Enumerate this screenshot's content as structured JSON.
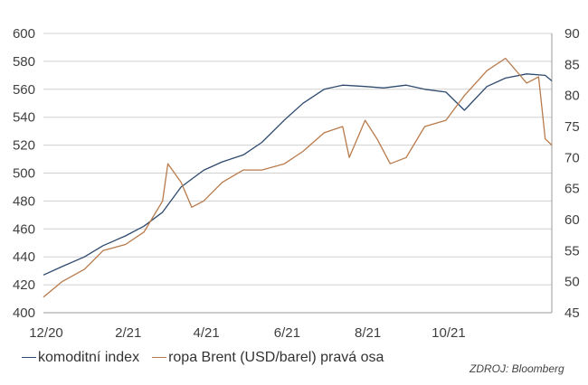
{
  "chart_data": {
    "type": "line",
    "title": "",
    "x_tick_labels": [
      "12/20",
      "2/21",
      "4/21",
      "6/21",
      "8/21",
      "10/21"
    ],
    "x_tick_dates": [
      "2020-12-01",
      "2021-02-01",
      "2021-04-01",
      "2021-06-01",
      "2021-08-01",
      "2021-10-01"
    ],
    "xlim": [
      "2020-12-01",
      "2021-12-20"
    ],
    "y_left": {
      "ylim": [
        400,
        600
      ],
      "ticks": [
        400,
        420,
        440,
        460,
        480,
        500,
        520,
        540,
        560,
        580,
        600
      ]
    },
    "y_right": {
      "ylim": [
        45,
        90
      ],
      "ticks": [
        45,
        50,
        55,
        60,
        65,
        70,
        75,
        80,
        85,
        90
      ]
    },
    "grid": true,
    "legend_position": "bottom-left",
    "series": [
      {
        "name": "komoditní index",
        "axis": "left",
        "color": "#2e4a6e",
        "x": [
          "2020-12-01",
          "2020-12-15",
          "2021-01-01",
          "2021-01-15",
          "2021-02-01",
          "2021-02-15",
          "2021-03-01",
          "2021-03-15",
          "2021-04-01",
          "2021-04-15",
          "2021-05-01",
          "2021-05-15",
          "2021-06-01",
          "2021-06-15",
          "2021-07-01",
          "2021-07-15",
          "2021-08-01",
          "2021-08-15",
          "2021-09-01",
          "2021-09-15",
          "2021-10-01",
          "2021-10-15",
          "2021-11-01",
          "2021-11-15",
          "2021-12-01",
          "2021-12-15",
          "2021-12-20"
        ],
        "values": [
          427,
          433,
          440,
          448,
          455,
          462,
          472,
          490,
          502,
          508,
          513,
          522,
          538,
          550,
          560,
          563,
          562,
          561,
          563,
          560,
          558,
          545,
          562,
          568,
          571,
          570,
          566
        ]
      },
      {
        "name": "ropa Brent (USD/barel) pravá osa",
        "axis": "right",
        "color": "#b87a4b",
        "x": [
          "2020-12-01",
          "2020-12-15",
          "2021-01-01",
          "2021-01-15",
          "2021-02-01",
          "2021-02-15",
          "2021-03-01",
          "2021-03-05",
          "2021-03-15",
          "2021-03-23",
          "2021-04-01",
          "2021-04-15",
          "2021-05-01",
          "2021-05-15",
          "2021-06-01",
          "2021-06-15",
          "2021-07-01",
          "2021-07-15",
          "2021-07-20",
          "2021-08-01",
          "2021-08-10",
          "2021-08-20",
          "2021-09-01",
          "2021-09-15",
          "2021-10-01",
          "2021-10-15",
          "2021-11-01",
          "2021-11-15",
          "2021-12-01",
          "2021-12-10",
          "2021-12-15",
          "2021-12-20"
        ],
        "values": [
          47.5,
          50,
          52,
          55,
          56,
          58,
          63,
          69,
          66,
          62,
          63,
          66,
          68,
          68,
          69,
          71,
          74,
          75,
          70,
          76,
          73,
          69,
          70,
          75,
          76,
          80,
          84,
          86,
          82,
          83,
          73,
          72
        ]
      }
    ]
  },
  "legend": {
    "items": [
      {
        "label": "komoditní index",
        "color": "#2e4a6e"
      },
      {
        "label": "ropa Brent (USD/barel) pravá osa",
        "color": "#b87a4b"
      }
    ]
  },
  "source": "ZDROJ: Bloomberg"
}
